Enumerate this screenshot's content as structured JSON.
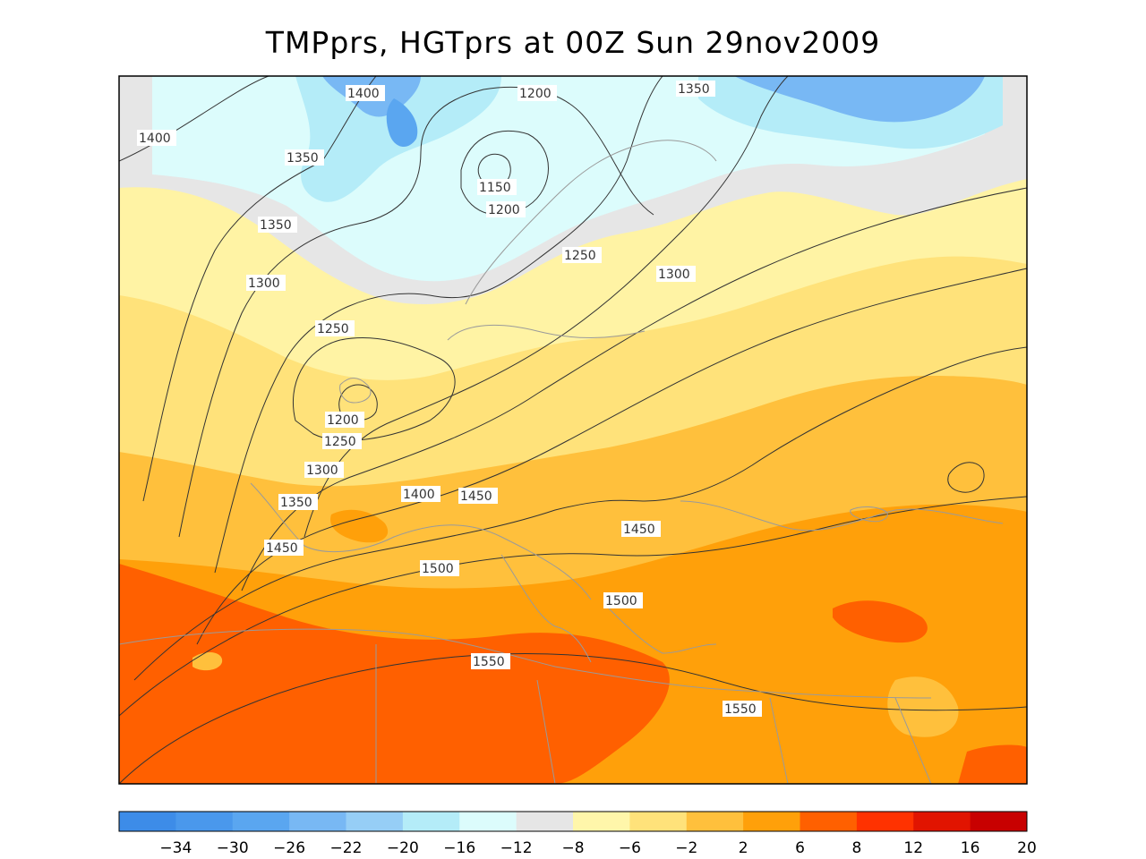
{
  "title": "TMPprs, HGTprs at 00Z Sun 29nov2009",
  "colorbar": {
    "colors": [
      "#3d8ce8",
      "#4a98ec",
      "#5aa6f0",
      "#78b8f4",
      "#96cef6",
      "#b4ecf8",
      "#dcfcfc",
      "#e6e6e6",
      "#fff6aa",
      "#ffe27a",
      "#ffc03c",
      "#ffa00a",
      "#ff6000",
      "#ff3200",
      "#e11400",
      "#c80000"
    ],
    "labels": [
      "-34",
      "-30",
      "-26",
      "-22",
      "-20",
      "-16",
      "-12",
      "-8",
      "-6",
      "-2",
      "2",
      "6",
      "8",
      "12",
      "16",
      "20"
    ]
  },
  "contour_labels": [
    "1400",
    "1200",
    "1350",
    "1400",
    "1350",
    "1150",
    "1200",
    "1350",
    "1250",
    "1300",
    "1300",
    "1250",
    "1200",
    "1250",
    "1300",
    "1400",
    "1450",
    "1350",
    "1450",
    "1500",
    "1450",
    "1500",
    "1550",
    "1550"
  ]
}
